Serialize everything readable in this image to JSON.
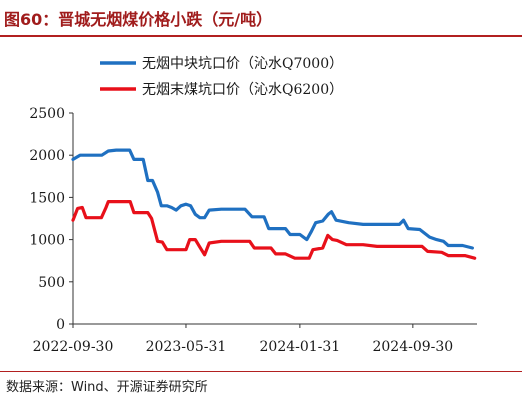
{
  "title": "图60：晋城无烟煤价格小跌（元/吨）",
  "source": "数据来源：Wind、开源证券研究所",
  "colors": {
    "title": "#a01c1c",
    "rule": "#b22020",
    "series_blue": "#1f70c1",
    "series_red": "#e8101a"
  },
  "chart_data": {
    "type": "line",
    "xlabel": "",
    "ylabel": "",
    "xlim": [
      "2022-09-30",
      "2025-02-15"
    ],
    "ylim": [
      0,
      2500
    ],
    "yticks": [
      0,
      500,
      1000,
      1500,
      2000,
      2500
    ],
    "yticklabels": [
      "0",
      "500",
      "1000",
      "1500",
      "2000",
      "2500"
    ],
    "xticks": [
      "2022-09-30",
      "2023-05-31",
      "2024-01-31",
      "2024-09-30"
    ],
    "xticklabels": [
      "2022-09-30",
      "2023-05-31",
      "2024-01-31",
      "2024-09-30"
    ],
    "grid": false,
    "legend_position": "top",
    "series": [
      {
        "name": "无烟中块坑口价（沁水Q7000）",
        "color": "#1f70c1",
        "points": [
          [
            "2022-09-30",
            1950
          ],
          [
            "2022-10-15",
            2000
          ],
          [
            "2022-11-10",
            2000
          ],
          [
            "2022-12-01",
            2000
          ],
          [
            "2022-12-15",
            2050
          ],
          [
            "2023-01-01",
            2060
          ],
          [
            "2023-01-30",
            2060
          ],
          [
            "2023-02-08",
            1950
          ],
          [
            "2023-02-28",
            1950
          ],
          [
            "2023-03-10",
            1700
          ],
          [
            "2023-03-20",
            1700
          ],
          [
            "2023-03-31",
            1560
          ],
          [
            "2023-04-08",
            1400
          ],
          [
            "2023-04-20",
            1400
          ],
          [
            "2023-04-30",
            1380
          ],
          [
            "2023-05-10",
            1350
          ],
          [
            "2023-05-20",
            1400
          ],
          [
            "2023-05-31",
            1420
          ],
          [
            "2023-06-10",
            1400
          ],
          [
            "2023-06-20",
            1300
          ],
          [
            "2023-06-30",
            1260
          ],
          [
            "2023-07-10",
            1260
          ],
          [
            "2023-07-20",
            1350
          ],
          [
            "2023-08-15",
            1360
          ],
          [
            "2023-09-15",
            1360
          ],
          [
            "2023-10-05",
            1360
          ],
          [
            "2023-10-20",
            1270
          ],
          [
            "2023-11-15",
            1270
          ],
          [
            "2023-11-25",
            1130
          ],
          [
            "2023-12-31",
            1130
          ],
          [
            "2024-01-10",
            1060
          ],
          [
            "2024-01-31",
            1060
          ],
          [
            "2024-02-15",
            1000
          ],
          [
            "2024-02-25",
            1100
          ],
          [
            "2024-03-05",
            1200
          ],
          [
            "2024-03-20",
            1220
          ],
          [
            "2024-04-01",
            1300
          ],
          [
            "2024-04-08",
            1330
          ],
          [
            "2024-04-18",
            1230
          ],
          [
            "2024-05-15",
            1200
          ],
          [
            "2024-06-15",
            1180
          ],
          [
            "2024-07-15",
            1180
          ],
          [
            "2024-08-15",
            1180
          ],
          [
            "2024-09-01",
            1180
          ],
          [
            "2024-09-10",
            1230
          ],
          [
            "2024-09-20",
            1130
          ],
          [
            "2024-10-15",
            1120
          ],
          [
            "2024-11-05",
            1030
          ],
          [
            "2024-11-20",
            1000
          ],
          [
            "2024-12-05",
            980
          ],
          [
            "2024-12-15",
            930
          ],
          [
            "2025-01-15",
            930
          ],
          [
            "2025-02-05",
            900
          ]
        ]
      },
      {
        "name": "无烟末煤坑口价（沁水Q6200）",
        "color": "#e8101a",
        "points": [
          [
            "2022-09-30",
            1230
          ],
          [
            "2022-10-10",
            1370
          ],
          [
            "2022-10-20",
            1380
          ],
          [
            "2022-10-28",
            1260
          ],
          [
            "2022-11-30",
            1260
          ],
          [
            "2022-12-10",
            1380
          ],
          [
            "2022-12-15",
            1450
          ],
          [
            "2023-01-31",
            1450
          ],
          [
            "2023-02-08",
            1320
          ],
          [
            "2023-03-10",
            1320
          ],
          [
            "2023-03-18",
            1250
          ],
          [
            "2023-03-31",
            980
          ],
          [
            "2023-04-10",
            970
          ],
          [
            "2023-04-20",
            880
          ],
          [
            "2023-05-31",
            880
          ],
          [
            "2023-06-08",
            1000
          ],
          [
            "2023-06-20",
            1000
          ],
          [
            "2023-06-30",
            910
          ],
          [
            "2023-07-10",
            820
          ],
          [
            "2023-07-20",
            960
          ],
          [
            "2023-08-15",
            980
          ],
          [
            "2023-09-15",
            980
          ],
          [
            "2023-10-15",
            980
          ],
          [
            "2023-10-25",
            900
          ],
          [
            "2023-11-30",
            900
          ],
          [
            "2023-12-10",
            830
          ],
          [
            "2023-12-31",
            830
          ],
          [
            "2024-01-20",
            780
          ],
          [
            "2024-02-20",
            780
          ],
          [
            "2024-02-28",
            880
          ],
          [
            "2024-03-20",
            900
          ],
          [
            "2024-03-31",
            1050
          ],
          [
            "2024-04-10",
            1000
          ],
          [
            "2024-04-20",
            990
          ],
          [
            "2024-05-10",
            940
          ],
          [
            "2024-06-15",
            940
          ],
          [
            "2024-07-15",
            920
          ],
          [
            "2024-08-30",
            920
          ],
          [
            "2024-09-30",
            920
          ],
          [
            "2024-10-20",
            920
          ],
          [
            "2024-11-01",
            860
          ],
          [
            "2024-12-01",
            850
          ],
          [
            "2024-12-15",
            810
          ],
          [
            "2025-01-20",
            810
          ],
          [
            "2025-02-10",
            780
          ]
        ]
      }
    ]
  }
}
